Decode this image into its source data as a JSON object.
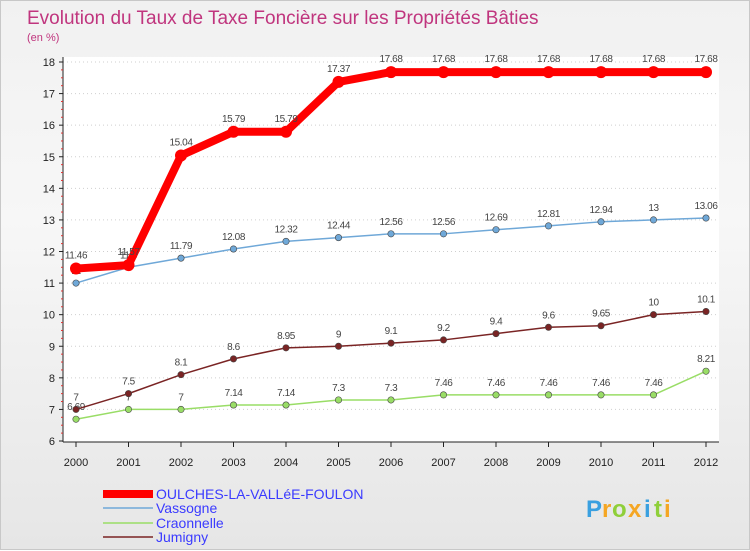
{
  "chart_data": {
    "type": "line",
    "title": "Evolution du Taux de Taxe Foncière sur les Propriétés Bâties",
    "subtitle": "(en %)",
    "xlabel": "",
    "ylabel": "",
    "ylim": [
      6,
      18
    ],
    "yticks": [
      "6",
      "7",
      "8",
      "9",
      "10",
      "11",
      "12",
      "13",
      "14",
      "15",
      "16",
      "17",
      "18"
    ],
    "x": [
      "2000",
      "2001",
      "2002",
      "2003",
      "2004",
      "2005",
      "2006",
      "2007",
      "2008",
      "2009",
      "2010",
      "2011",
      "2012"
    ],
    "series": [
      {
        "name": "OULCHES-LA-VALLéE-FOULON",
        "color": "#ff0000",
        "values": [
          11.46,
          11.57,
          15.04,
          15.79,
          15.79,
          17.37,
          17.68,
          17.68,
          17.68,
          17.68,
          17.68,
          17.68,
          17.68
        ],
        "labels": [
          "11.46",
          "11.57",
          "15.04",
          "15.79",
          "15.79",
          "17.37",
          "17.68",
          "17.68",
          "17.68",
          "17.68",
          "17.68",
          "17.68",
          "17.68"
        ]
      },
      {
        "name": "Vassogne",
        "color": "#6fa8d8",
        "values": [
          11,
          11.5,
          11.79,
          12.08,
          12.32,
          12.44,
          12.56,
          12.56,
          12.69,
          12.81,
          12.94,
          13,
          13.06
        ],
        "labels": [
          "11",
          "11.5",
          "11.79",
          "12.08",
          "12.32",
          "12.44",
          "12.56",
          "12.56",
          "12.69",
          "12.81",
          "12.94",
          "13",
          "13.06"
        ]
      },
      {
        "name": "Craonnelle",
        "color": "#99dd66",
        "values": [
          6.69,
          7,
          7,
          7.14,
          7.14,
          7.3,
          7.3,
          7.46,
          7.46,
          7.46,
          7.46,
          7.46,
          8.21
        ],
        "labels": [
          "6.69",
          "7",
          "7",
          "7.14",
          "7.14",
          "7.3",
          "7.3",
          "7.46",
          "7.46",
          "7.46",
          "7.46",
          "7.46",
          "8.21"
        ]
      },
      {
        "name": "Jumigny",
        "color": "#7a2424",
        "values": [
          7,
          7.5,
          8.1,
          8.6,
          8.95,
          9,
          9.1,
          9.2,
          9.4,
          9.6,
          9.65,
          10,
          10.1
        ],
        "labels": [
          "7",
          "7.5",
          "8.1",
          "8.6",
          "8.95",
          "9",
          "9.1",
          "9.2",
          "9.4",
          "9.6",
          "9.65",
          "10",
          "10.1"
        ]
      }
    ],
    "legend_position": "bottom-left"
  },
  "logo": {
    "letters": [
      "P",
      "r",
      "o",
      "x",
      "i",
      "t",
      "i"
    ],
    "colors": [
      "#3aa0e0",
      "#f5a623",
      "#8fcf3a",
      "#f5a623",
      "#3aa0e0",
      "#8fcf3a",
      "#f5a623"
    ]
  }
}
